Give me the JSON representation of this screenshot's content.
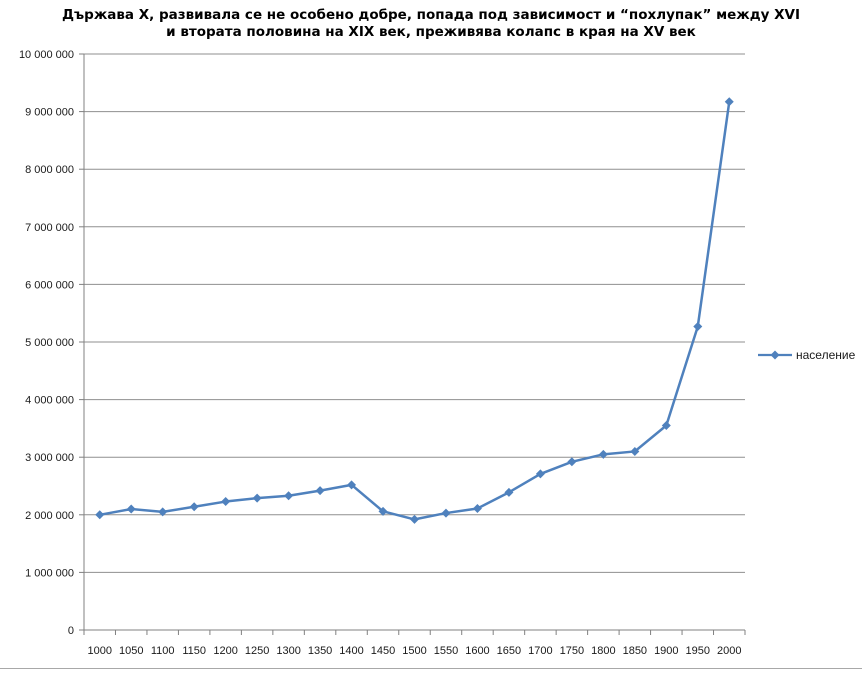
{
  "title": {
    "line1": "Държава X, развивала се не особено добре, попада под зависимост и “похлупак” между XVI",
    "line2": "и втората половина на XIX век, преживява колапс в края на XV век"
  },
  "legend": {
    "label": "население",
    "position": "right"
  },
  "colors": {
    "series": "#4F81BD",
    "gridline": "#8f8f8f",
    "axis": "#808080",
    "label_text": "#1a1a1a",
    "bottom_rule": "#a8a8a8",
    "background": "#ffffff"
  },
  "chart_data": {
    "type": "line",
    "marker": "diamond",
    "title": "Държава X, развивала се не особено добре, попада под зависимост и “похлупак” между XVI и втората половина на XIX век, преживява колапс в края на XV век",
    "xlabel": "",
    "ylabel": "",
    "categories": [
      1000,
      1050,
      1100,
      1150,
      1200,
      1250,
      1300,
      1350,
      1400,
      1450,
      1500,
      1550,
      1600,
      1650,
      1700,
      1750,
      1800,
      1850,
      1900,
      1950,
      2000
    ],
    "series": [
      {
        "name": "население",
        "values": [
          2000000,
          2100000,
          2050000,
          2140000,
          2230000,
          2290000,
          2330000,
          2420000,
          2520000,
          2060000,
          1920000,
          2030000,
          2110000,
          2390000,
          2710000,
          2920000,
          3050000,
          3100000,
          3550000,
          5270000,
          9170000
        ]
      }
    ],
    "ylim": [
      0,
      10000000
    ],
    "ytick_step": 1000000,
    "ytick_labels": [
      "0",
      "1 000 000",
      "2 000 000",
      "3 000 000",
      "4 000 000",
      "5 000 000",
      "6 000 000",
      "7 000 000",
      "8 000 000",
      "9 000 000",
      "10 000 000"
    ],
    "grid": "horizontal",
    "legend_position": "right"
  }
}
